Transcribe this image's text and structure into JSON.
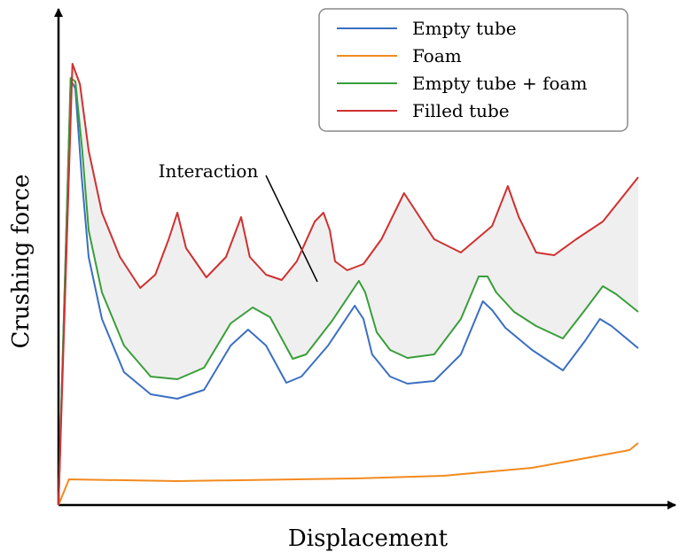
{
  "chart_data": {
    "type": "line",
    "xlabel": "Displacement",
    "ylabel": "Crushing force",
    "annotation": "Interaction",
    "xlim": [
      0,
      100
    ],
    "ylim": [
      0,
      100
    ],
    "legend": "upper right",
    "series": [
      {
        "name": "Empty tube",
        "color": "#3b6fc1",
        "x": [
          0,
          2.1,
          2.9,
          4.0,
          5.2,
          7.5,
          11.3,
          15.9,
          20.5,
          25.1,
          29.7,
          32.7,
          35.8,
          39.3,
          41.9,
          46.5,
          51.1,
          52.6,
          54.1,
          57.2,
          60.2,
          64.8,
          69.4,
          73.2,
          74.8,
          77.1,
          81.7,
          87.0,
          90.8,
          93.4,
          95.4,
          100
        ],
        "values": [
          0,
          96,
          94,
          74,
          56,
          42,
          30,
          25,
          24,
          26,
          36,
          39.6,
          36,
          27.6,
          29,
          36,
          45,
          42,
          34,
          29,
          27.4,
          28,
          34,
          46,
          44,
          40,
          35,
          30.4,
          37,
          42,
          40.4,
          35.4
        ]
      },
      {
        "name": "Foam",
        "color": "#f28a1e",
        "x": [
          0,
          1.8,
          20.5,
          51.1,
          66.4,
          81.7,
          98.5,
          100
        ],
        "values": [
          0,
          5.8,
          5.4,
          6,
          6.6,
          8.4,
          12.4,
          14
        ]
      },
      {
        "name": "Empty tube + foam",
        "color": "#3a9e3a",
        "x": [
          0,
          2.1,
          2.9,
          4.1,
          5.2,
          7.5,
          11.3,
          15.9,
          20.5,
          25.1,
          29.7,
          33.5,
          36.5,
          40.4,
          42.7,
          47.2,
          51.8,
          52.9,
          54.9,
          57.2,
          60.2,
          64.8,
          69.4,
          72.5,
          74.0,
          75.5,
          78.6,
          82.4,
          87.0,
          90.8,
          93.9,
          96.2,
          100
        ],
        "values": [
          0,
          96.4,
          95.6,
          80,
          62,
          48,
          36,
          29,
          28.4,
          31,
          41,
          44.6,
          42.4,
          33,
          34,
          41.6,
          50.6,
          48,
          39,
          35,
          33.2,
          34,
          42,
          51.6,
          51.6,
          48,
          43.6,
          40.4,
          37.6,
          44,
          49.4,
          47.6,
          43.6
        ]
      },
      {
        "name": "Filled tube",
        "color": "#d03030",
        "x": [
          0,
          2.4,
          3.7,
          5.2,
          7.5,
          10.6,
          14.1,
          16.7,
          19.0,
          20.5,
          22.0,
          25.5,
          28.9,
          31.5,
          33.0,
          35.8,
          38.5,
          41.1,
          44.2,
          45.7,
          46.8,
          47.7,
          49.8,
          52.6,
          55.7,
          59.6,
          61.8,
          64.8,
          69.4,
          74.8,
          77.5,
          79.4,
          82.4,
          85.5,
          89.3,
          93.9,
          100
        ],
        "values": [
          0,
          99.6,
          95,
          80,
          66,
          56,
          49,
          52,
          60,
          66,
          58,
          51.4,
          56,
          65,
          56,
          52,
          50.8,
          55,
          64,
          66,
          62,
          55,
          53,
          54.4,
          60,
          70.4,
          66,
          60,
          57,
          63,
          72,
          65,
          57,
          56.4,
          60,
          64,
          74
        ]
      }
    ]
  }
}
